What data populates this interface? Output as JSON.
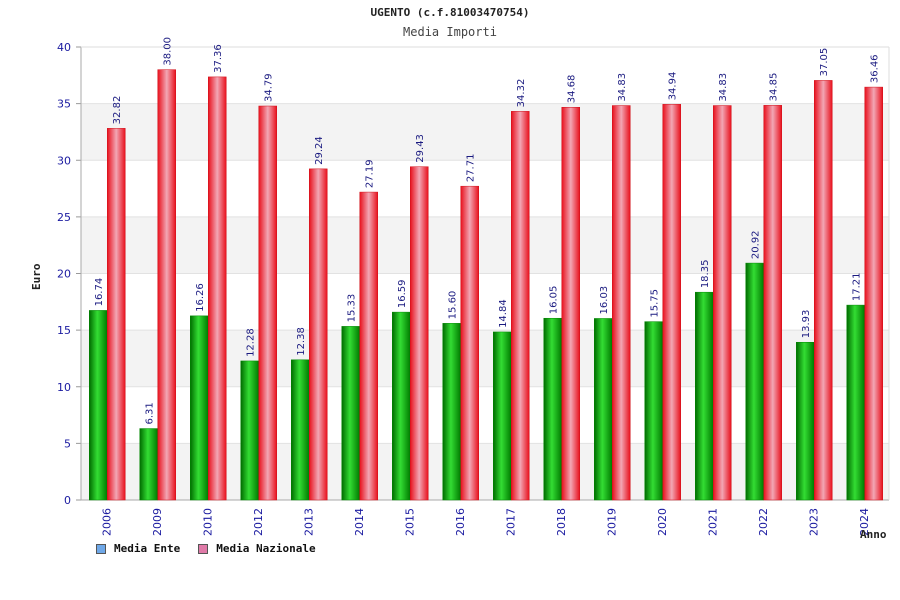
{
  "chart_data": {
    "type": "bar",
    "title": "UGENTO (c.f.81003470754)",
    "subtitle": "Media Importi",
    "xlabel": "Anno",
    "ylabel": "Euro",
    "ylim": [
      0,
      40
    ],
    "yticks": [
      0,
      5,
      10,
      15,
      20,
      25,
      30,
      35,
      40
    ],
    "grid": true,
    "legend_position": "bottom-left",
    "categories": [
      "2006",
      "2009",
      "2010",
      "2012",
      "2013",
      "2014",
      "2015",
      "2016",
      "2017",
      "2018",
      "2019",
      "2020",
      "2021",
      "2022",
      "2023",
      "2024"
    ],
    "series": [
      {
        "name": "Media Ente",
        "color": "#00a000",
        "legend_color": "#6fa8e8",
        "values": [
          16.74,
          6.31,
          16.26,
          12.28,
          12.38,
          15.33,
          16.59,
          15.6,
          14.84,
          16.05,
          16.03,
          15.75,
          18.35,
          20.92,
          13.93,
          17.21
        ],
        "labels": [
          "16.74",
          "6.31",
          "16.26",
          "12.28",
          "12.38",
          "15.33",
          "16.59",
          "15.60",
          "14.84",
          "16.05",
          "16.03",
          "15.75",
          "18.35",
          "20.92",
          "13.93",
          "17.21"
        ]
      },
      {
        "name": "Media Nazionale",
        "color": "#e8202a",
        "legend_color": "#e07aa8",
        "values": [
          32.82,
          38.0,
          37.36,
          34.79,
          29.24,
          27.19,
          29.43,
          27.71,
          34.32,
          34.68,
          34.83,
          34.94,
          34.83,
          34.85,
          37.05,
          36.46
        ],
        "labels": [
          "32.82",
          "38.00",
          "37.36",
          "34.79",
          "29.24",
          "27.19",
          "29.43",
          "27.71",
          "34.32",
          "34.68",
          "34.83",
          "34.94",
          "34.83",
          "34.85",
          "37.05",
          "36.46"
        ]
      }
    ]
  }
}
